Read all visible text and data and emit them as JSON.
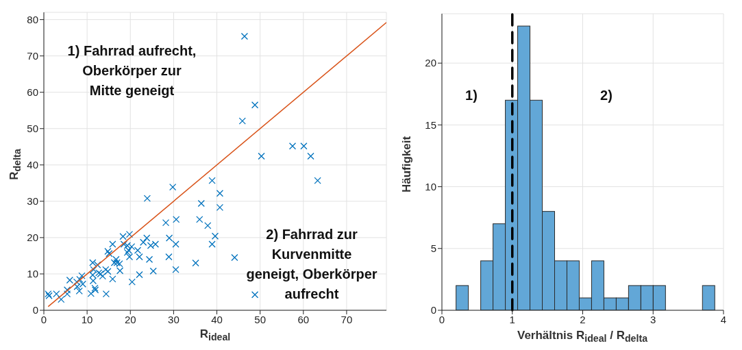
{
  "chart_data": [
    {
      "type": "scatter",
      "xlabel": "R$_{ideal}$",
      "ylabel": "R$_{delta}$",
      "xlim": [
        0,
        79.2
      ],
      "ylim": [
        0,
        82
      ],
      "xticks": [
        0,
        10,
        20,
        30,
        40,
        50,
        60,
        70
      ],
      "yticks": [
        0,
        10,
        20,
        30,
        40,
        50,
        60,
        70,
        80
      ],
      "grid": true,
      "annotations": [
        "1) Fahrrad aufrecht,\nOberkörper zur\nMitte geneigt",
        "2) Fahrrad zur\nKurvenmitte\ngeneigt, Oberkörper\naufrecht"
      ],
      "series": [
        {
          "type": "scatter",
          "color": "#0072bd",
          "marker": "cross",
          "x": [
            1.0,
            1.2,
            2.9,
            4.0,
            5.4,
            5.4,
            6.0,
            7.6,
            7.7,
            8.2,
            8.8,
            9.0,
            8.3,
            11.3,
            11.5,
            11.3,
            11.4,
            10.9,
            11.9,
            11.8,
            12.4,
            12.7,
            13.1,
            13.6,
            14.3,
            14.8,
            14.4,
            15.1,
            14.8,
            15.9,
            15.9,
            16.7,
            16.9,
            17.5,
            17.6,
            16.3,
            18.3,
            18.5,
            19.3,
            19.8,
            20.3,
            19.3,
            19.8,
            19.6,
            20.4,
            21.7,
            22.1,
            22.1,
            23.0,
            23.8,
            23.9,
            24.4,
            24.7,
            25.3,
            25.8,
            28.2,
            29.0,
            28.9,
            29.8,
            30.6,
            30.5,
            30.5,
            35.1,
            36.0,
            36.4,
            37.9,
            38.9,
            38.9,
            39.6,
            40.7,
            40.7,
            46.4,
            48.8,
            45.9,
            50.3,
            57.5,
            60.1,
            61.7,
            63.3,
            44.1,
            48.8
          ],
          "values": [
            4.5,
            4.0,
            4.5,
            3.0,
            5.6,
            4.5,
            8.3,
            7.8,
            6.5,
            5.3,
            9.5,
            7.2,
            8.5,
            13.1,
            11.2,
            9.7,
            8.1,
            4.6,
            5.6,
            6.1,
            12.5,
            10.3,
            10.0,
            9.4,
            11.2,
            10.7,
            4.5,
            15.6,
            16.2,
            18.2,
            8.6,
            14.0,
            13.1,
            12.8,
            10.9,
            13.1,
            20.3,
            18.2,
            17.8,
            20.9,
            17.5,
            15.9,
            14.7,
            16.5,
            7.8,
            16.5,
            14.7,
            9.8,
            18.7,
            19.9,
            30.8,
            14.0,
            17.8,
            10.8,
            18.2,
            24.1,
            19.9,
            14.7,
            33.9,
            25.0,
            18.2,
            11.2,
            13.0,
            25.0,
            29.4,
            23.3,
            35.7,
            18.2,
            20.4,
            32.2,
            28.3,
            75.4,
            56.5,
            52.1,
            42.4,
            45.2,
            45.2,
            42.4,
            35.7,
            14.5,
            4.3
          ]
        },
        {
          "type": "line",
          "color": "#d95319",
          "marker": "none",
          "x": [
            1,
            79.2
          ],
          "values": [
            1,
            79.2
          ]
        }
      ]
    },
    {
      "type": "histogram",
      "xlabel": "Verhältnis R$_{ideal}$ / R$_{delta}$",
      "ylabel": "Häufigkeit",
      "xlim": [
        0,
        4
      ],
      "ylim": [
        0,
        24
      ],
      "xticks": [
        0,
        1,
        2,
        3,
        4
      ],
      "yticks": [
        0,
        5,
        10,
        15,
        20
      ],
      "grid": true,
      "color": "#62a7d7",
      "bins": [
        0.2,
        0.375,
        0.55,
        0.725,
        0.9,
        1.075,
        1.25,
        1.425,
        1.6,
        1.775,
        1.95,
        2.125,
        2.3,
        2.475,
        2.65,
        2.825,
        3.0,
        3.175,
        3.35,
        3.525,
        3.7,
        3.875
      ],
      "values": [
        2,
        0,
        4,
        7,
        17,
        23,
        17,
        8,
        4,
        4,
        1,
        4,
        1,
        1,
        2,
        2,
        2,
        0,
        0,
        0,
        2
      ],
      "ref_lines": [
        {
          "axis": "x",
          "value": 1,
          "color": "#000000",
          "line_style": "dashed"
        }
      ],
      "annotations": [
        "1)",
        "2)"
      ]
    }
  ]
}
